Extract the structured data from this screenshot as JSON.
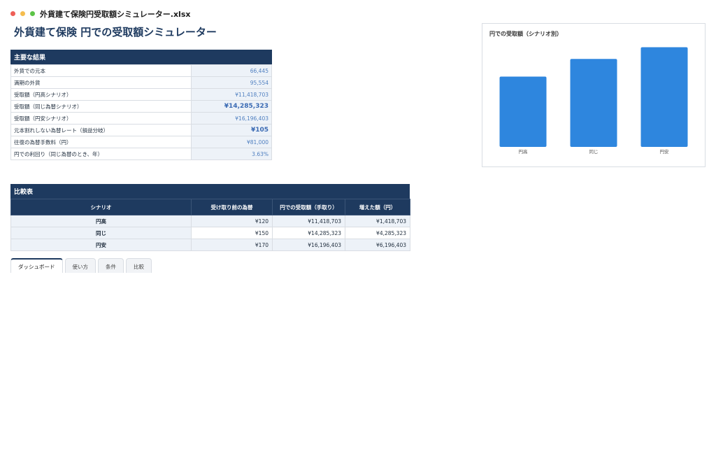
{
  "window": {
    "title": "外貨建て保険円受取額シミュレーター.xlsx"
  },
  "page": {
    "title": "外貨建て保険 円での受取額シミュレーター"
  },
  "results": {
    "header": "主要な結果",
    "rows": [
      {
        "label": "外貨での元本",
        "value": "66,445",
        "emphasis": false
      },
      {
        "label": "満期の外貨",
        "value": "95,554",
        "emphasis": false
      },
      {
        "label": "受取額（円高シナリオ）",
        "value": "¥11,418,703",
        "emphasis": false
      },
      {
        "label": "受取額（同じ為替シナリオ）",
        "value": "¥14,285,323",
        "emphasis": true
      },
      {
        "label": "受取額（円安シナリオ）",
        "value": "¥16,196,403",
        "emphasis": false
      },
      {
        "label": "元本割れしない為替レート（損益分岐）",
        "value": "¥105",
        "emphasis": true
      },
      {
        "label": "往復の為替手数料（円）",
        "value": "¥81,000",
        "emphasis": false
      },
      {
        "label": "円での利回り（同じ為替のとき、年）",
        "value": "3.63%",
        "emphasis": false
      }
    ]
  },
  "comparison": {
    "header": "比較表",
    "columns": [
      "シナリオ",
      "受け取り前の為替",
      "円での受取額（手取り）",
      "増えた額（円）"
    ],
    "rows": [
      {
        "scenario": "円高",
        "rate": "¥120",
        "amount": "¥11,418,703",
        "gain": "¥1,418,703"
      },
      {
        "scenario": "同じ",
        "rate": "¥150",
        "amount": "¥14,285,323",
        "gain": "¥4,285,323"
      },
      {
        "scenario": "円安",
        "rate": "¥170",
        "amount": "¥16,196,403",
        "gain": "¥6,196,403"
      }
    ]
  },
  "tabs": [
    {
      "label": "ダッシュボード",
      "active": true
    },
    {
      "label": "使い方",
      "active": false
    },
    {
      "label": "条件",
      "active": false
    },
    {
      "label": "比較",
      "active": false
    }
  ],
  "chart_data": {
    "type": "bar",
    "title": "円での受取額（シナリオ別）",
    "categories": [
      "円高",
      "同じ",
      "円安"
    ],
    "values": [
      11418703,
      14285323,
      16196403
    ],
    "ylim": [
      0,
      17500000
    ],
    "grid": false,
    "bar_color": "#2e86de"
  }
}
